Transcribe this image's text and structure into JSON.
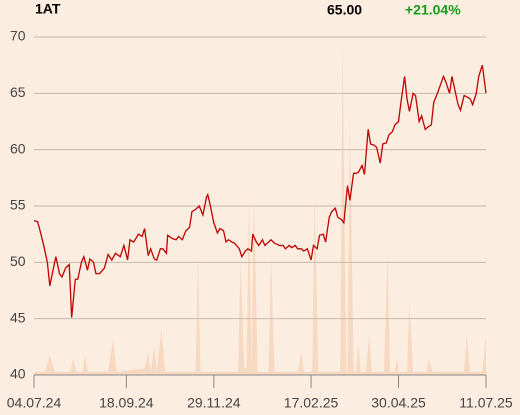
{
  "header": {
    "ticker": "1AT",
    "last_price": "65.00",
    "change": "+21.04%"
  },
  "chart_data": {
    "type": "line",
    "xlim": [
      0,
      372
    ],
    "xticks": [
      {
        "value": 0,
        "label": "04.07.24"
      },
      {
        "value": 76,
        "label": "18.09.24"
      },
      {
        "value": 148,
        "label": "29.11.24"
      },
      {
        "value": 228,
        "label": "17.02.25"
      },
      {
        "value": 300,
        "label": "30.04.25"
      },
      {
        "value": 372,
        "label": "11.07.25"
      }
    ],
    "ylim": [
      40,
      70
    ],
    "yticks": [
      40,
      45,
      50,
      55,
      60,
      65,
      70
    ],
    "grid": true,
    "y2lim": [
      0,
      100
    ],
    "series": [
      {
        "color": "#c00000",
        "x": [
          0,
          3,
          5,
          8,
          11,
          13,
          16,
          18,
          21,
          23,
          26,
          29,
          31,
          34,
          36,
          39,
          41,
          44,
          46,
          49,
          51,
          54,
          58,
          61,
          64,
          67,
          71,
          74,
          77,
          79,
          82,
          86,
          89,
          91,
          94,
          96,
          99,
          101,
          104,
          106,
          109,
          110,
          114,
          117,
          119,
          122,
          125,
          128,
          130,
          133,
          136,
          139,
          142,
          143,
          145,
          148,
          151,
          153,
          156,
          158,
          160,
          163,
          165,
          169,
          171,
          174,
          176,
          179,
          180,
          183,
          185,
          188,
          190,
          193,
          195,
          198,
          200,
          202,
          205,
          207,
          210,
          212,
          215,
          217,
          220,
          222,
          225,
          228,
          230,
          233,
          235,
          238,
          240,
          243,
          245,
          248,
          250,
          253,
          255,
          258,
          260,
          263,
          265,
          267,
          270,
          272,
          275,
          277,
          280,
          282,
          285,
          287,
          290,
          292,
          295,
          297,
          300,
          302,
          305,
          307,
          309,
          312,
          314,
          317,
          319,
          322,
          324,
          327,
          329,
          332,
          334,
          337,
          339,
          342,
          344,
          346,
          349,
          351,
          354,
          356,
          359,
          361,
          364,
          366,
          369,
          372
        ],
        "values": [
          53.7,
          53.6,
          52.8,
          51.5,
          50,
          47.9,
          49.5,
          50.5,
          49,
          48.7,
          49.5,
          49.8,
          45.1,
          48.5,
          48.5,
          50,
          50.5,
          49.3,
          50.3,
          50,
          49,
          49,
          49.5,
          50.7,
          50.2,
          50.8,
          50.5,
          51.5,
          50.2,
          52,
          51.8,
          52.5,
          52.3,
          53,
          50.6,
          51.2,
          50.3,
          50.2,
          51.2,
          51.2,
          50.8,
          52.4,
          52.1,
          52,
          52.3,
          52,
          52.8,
          53.1,
          54.5,
          54.7,
          55,
          54.2,
          55.8,
          56,
          55.1,
          53.5,
          52.6,
          53,
          52.8,
          51.8,
          52,
          51.8,
          51.7,
          51.2,
          50.5,
          51,
          51.2,
          51,
          52.5,
          51.8,
          51.5,
          52,
          51.5,
          51.8,
          52,
          51.7,
          51.6,
          51.5,
          51.5,
          51.2,
          51.5,
          51.3,
          51.5,
          51.2,
          51.2,
          51,
          51.2,
          50.2,
          51.5,
          51.2,
          52.4,
          52.5,
          51.8,
          54,
          54.5,
          54.8,
          54,
          53.8,
          53.5,
          56.8,
          55.5,
          57.9,
          57.9,
          58,
          58.6,
          57.8,
          61.8,
          60.5,
          60.4,
          60.2,
          58.8,
          60.5,
          60.6,
          61.3,
          61.6,
          62.2,
          62.5,
          64.2,
          66.5,
          64.5,
          63.4,
          65,
          64.8,
          62.5,
          63,
          61.8,
          62,
          62.2,
          64.2,
          65,
          65.6,
          66.5,
          66,
          65,
          66.5,
          65.5,
          64,
          63.5,
          64.8,
          64.7,
          64.5,
          64,
          65,
          66.5,
          67.5,
          65
        ]
      },
      {
        "type": "area",
        "axis": "y2",
        "color": "#f7d9c2",
        "x": [
          0,
          9,
          13,
          17,
          30,
          32,
          35,
          40,
          42,
          44,
          61,
          65,
          68,
          91,
          94,
          96,
          99,
          101,
          105,
          108,
          133,
          135,
          137,
          168,
          170,
          173,
          175,
          177,
          179,
          181,
          184,
          193,
          195,
          198,
          217,
          220,
          222,
          229,
          231,
          234,
          252,
          254,
          257,
          258,
          260,
          263,
          265,
          267,
          269,
          273,
          276,
          278,
          288,
          291,
          293,
          297,
          299,
          300,
          307,
          309,
          312,
          323,
          325,
          328,
          354,
          356,
          359,
          369,
          372
        ],
        "values": [
          1,
          1,
          6,
          1,
          1,
          5,
          1,
          1,
          6,
          1,
          1,
          11,
          1,
          2,
          7,
          1,
          9,
          1,
          14,
          1,
          1,
          37,
          1,
          1,
          35,
          2,
          2,
          55,
          2,
          56,
          1,
          1,
          36,
          1,
          1,
          7,
          1,
          1,
          55,
          1,
          1,
          100,
          1,
          1,
          79,
          1,
          1,
          10,
          1,
          1,
          12,
          1,
          1,
          36,
          1,
          1,
          5,
          1,
          1,
          22,
          1,
          1,
          5,
          1,
          1,
          12,
          1,
          1,
          12
        ]
      }
    ]
  }
}
